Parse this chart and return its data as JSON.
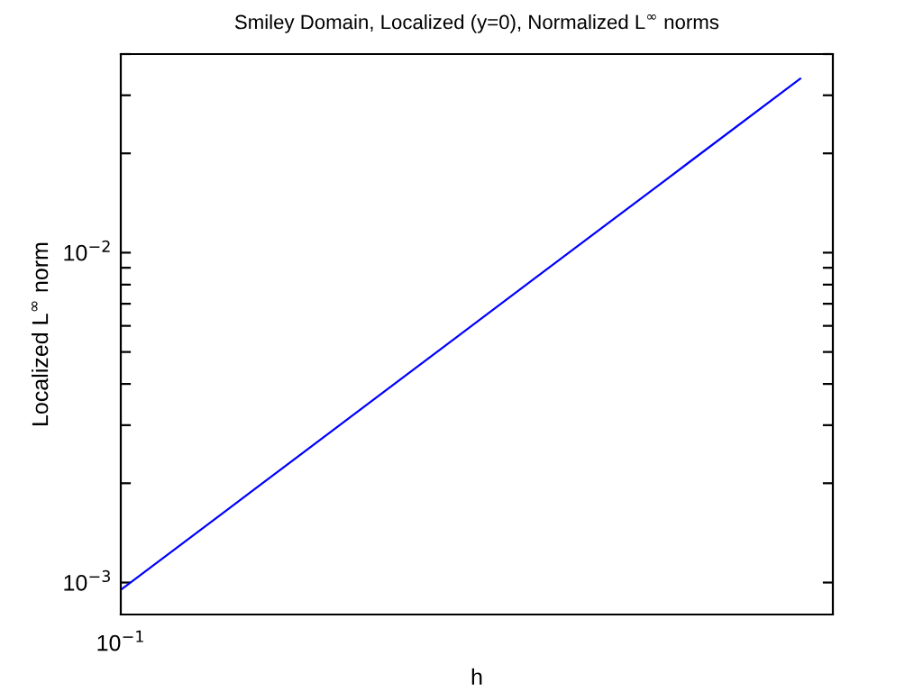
{
  "chart_data": {
    "type": "line",
    "title": "Smiley Domain, Localized (y=0), Normalized L$^{∞}$ norms",
    "xlabel": "h",
    "ylabel": "Localized L$^{∞}$ norm",
    "categories": [
      null,
      null,
      null,
      null,
      null,
      null
    ],
    "series": [
      {
        "color": "#0000ff",
        "values": [
          0.00095,
          0.00194,
          0.00396,
          0.00809,
          0.0165,
          0.0337
        ]
      }
    ],
    "annotations": [
      "10$^{−1}$"
    ],
    "log": "y",
    "ylim": [
      0.0008,
      0.04
    ],
    "yticks": [
      {
        "value": 0.001,
        "label": "10$^{−3}$"
      },
      {
        "value": 0.002,
        "label": null
      },
      {
        "value": 0.003,
        "label": null
      },
      {
        "value": 0.004,
        "label": null
      },
      {
        "value": 0.005,
        "label": null
      },
      {
        "value": 0.006,
        "label": null
      },
      {
        "value": 0.007,
        "label": null
      },
      {
        "value": 0.008,
        "label": null
      },
      {
        "value": 0.009,
        "label": null
      },
      {
        "value": 0.01,
        "label": "10$^{−2}$"
      },
      {
        "value": 0.02,
        "label": null
      },
      {
        "value": 0.03,
        "label": null
      },
      {
        "value": 0.04,
        "label": null
      }
    ],
    "grid": false,
    "marker": "none",
    "line_style": "solid"
  }
}
